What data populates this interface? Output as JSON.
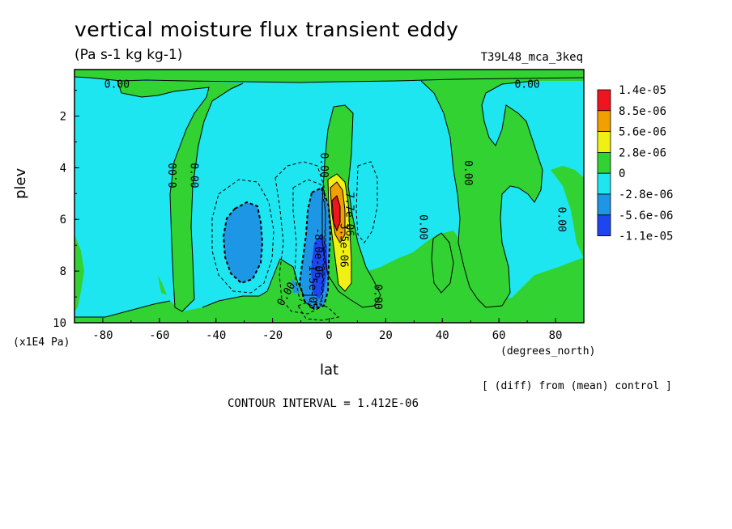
{
  "title": "vertical moisture flux transient eddy",
  "units": "(Pa s-1 kg kg-1)",
  "run_label": "T39L48_mca_3keq",
  "y_scale_note": "(x1E4 Pa)",
  "x_units": "(degrees_north)",
  "diff_note": "[ (diff) from (mean) control ]",
  "contour_interval": "CONTOUR INTERVAL = 1.412E-06",
  "colors": {
    "red": "#f0141e",
    "orange": "#f0a000",
    "yellow": "#f0f014",
    "green": "#32d232",
    "cyan": "#1ee6f0",
    "mid_blue": "#1e96e6",
    "blue": "#1e46f0"
  },
  "chart_data": {
    "type": "heatmap",
    "subtype": "filled-contour",
    "xlabel": "lat",
    "ylabel": "plev",
    "xlim": [
      -90,
      90
    ],
    "ylim": [
      10,
      0.2
    ],
    "y_inverted": true,
    "x_ticks": [
      -80,
      -60,
      -40,
      -20,
      0,
      20,
      40,
      60,
      80
    ],
    "x_tick_labels": [
      "-80",
      "-60",
      "-40",
      "-20",
      "0",
      "20",
      "40",
      "60",
      "80"
    ],
    "y_ticks": [
      2,
      4,
      6,
      8,
      10
    ],
    "y_tick_labels": [
      "2",
      "4",
      "6",
      "8",
      "10"
    ],
    "legend_placement": "right",
    "color_levels": [
      {
        "label": "1.4e-05",
        "color": "#f0141e"
      },
      {
        "label": "8.5e-06",
        "color": "#f0a000"
      },
      {
        "label": "5.6e-06",
        "color": "#f0f014"
      },
      {
        "label": "2.8e-06",
        "color": "#32d232"
      },
      {
        "label": "0",
        "color": "#1ee6f0"
      },
      {
        "label": "-2.8e-06",
        "color": "#1e96e6"
      },
      {
        "label": "-5.6e-06",
        "color": "#1e46f0"
      },
      {
        "label": "-1.1e-05",
        "color": ""
      }
    ],
    "contour_labels": [
      {
        "text": "0.00",
        "x": -75,
        "y": 0.8,
        "rotate": 0
      },
      {
        "text": "0.00",
        "x": 70,
        "y": 0.8,
        "rotate": 0
      },
      {
        "text": "0.00",
        "x": -55,
        "y": 4.3,
        "rotate": -90
      },
      {
        "text": "0.00",
        "x": -48,
        "y": 4.3,
        "rotate": 90
      },
      {
        "text": "0.00",
        "x": -2,
        "y": 3.9,
        "rotate": 90
      },
      {
        "text": "0.00",
        "x": 33,
        "y": 6.3,
        "rotate": 90
      },
      {
        "text": "0.00",
        "x": 49,
        "y": 4.2,
        "rotate": 90
      },
      {
        "text": "0.00",
        "x": 82,
        "y": 6.0,
        "rotate": 90
      },
      {
        "text": "0.00",
        "x": 17,
        "y": 9.0,
        "rotate": 90
      },
      {
        "text": "0.00",
        "x": -15,
        "y": 8.9,
        "rotate": -60
      },
      {
        "text": "7.7e-06",
        "x": 7,
        "y": 5.8,
        "rotate": 90
      },
      {
        "text": "3.5e-06",
        "x": 5,
        "y": 7.0,
        "rotate": 90
      },
      {
        "text": "-8.0e-06",
        "x": -4,
        "y": 7.3,
        "rotate": 90
      },
      {
        "text": "-1.5e-05",
        "x": -6,
        "y": 8.5,
        "rotate": 90
      }
    ]
  }
}
